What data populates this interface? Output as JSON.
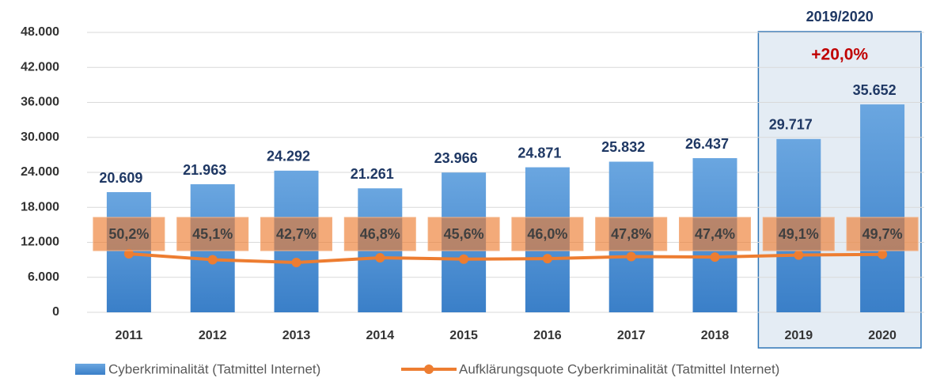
{
  "chart_data": {
    "type": "bar",
    "categories": [
      "2011",
      "2012",
      "2013",
      "2014",
      "2015",
      "2016",
      "2017",
      "2018",
      "2019",
      "2020"
    ],
    "series": [
      {
        "name": "Cyberkriminalität (Tatmittel Internet)",
        "color": "#4a8fd4",
        "type": "bar",
        "values": [
          20609,
          21963,
          24292,
          21261,
          23966,
          24871,
          25832,
          26437,
          29717,
          35652
        ],
        "value_labels": [
          "20.609",
          "21.963",
          "24.292",
          "21.261",
          "23.966",
          "24.871",
          "25.832",
          "26.437",
          "29.717",
          "35.652"
        ]
      },
      {
        "name": "Aufklärungsquote Cyberkriminalität (Tatmittel Internet)",
        "color": "#ed7d31",
        "type": "line",
        "axis": "y2",
        "values": [
          50.2,
          45.1,
          42.7,
          46.8,
          45.6,
          46.0,
          47.8,
          47.4,
          49.1,
          49.7
        ],
        "value_labels": [
          "50,2%",
          "45,1%",
          "42,7%",
          "46,8%",
          "45,6%",
          "46,0%",
          "47,8%",
          "47,4%",
          "49,1%",
          "49,7%"
        ]
      }
    ],
    "ylim": [
      0,
      48000
    ],
    "yticks": [
      0,
      {
        "value": 6000,
        "label": "6.000"
      },
      {
        "value": 12000,
        "label": "12.000"
      },
      {
        "value": 18000,
        "label": "18.000"
      },
      {
        "value": 24000,
        "label": "24.000"
      },
      {
        "value": 30000,
        "label": "30.000"
      },
      {
        "value": 36000,
        "label": "36.000"
      },
      {
        "value": 42000,
        "label": "42.000"
      },
      {
        "value": 48000,
        "label": "48.000"
      }
    ],
    "y2lim": [
      0,
      240
    ],
    "grid": true,
    "legend": "bottom",
    "annotations": [
      "2019/2020",
      "+20,0%"
    ]
  }
}
